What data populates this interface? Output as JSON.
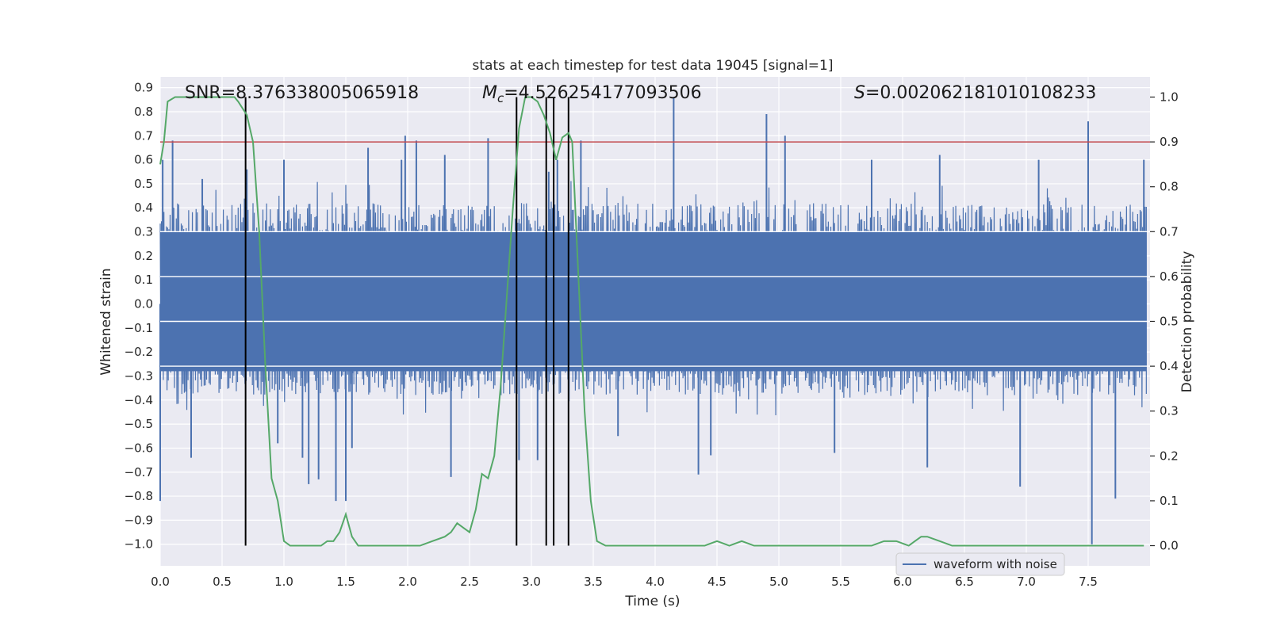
{
  "chart_data": {
    "type": "line",
    "title": "stats at each timestep for test data 19045 [signal=1]",
    "xlabel": "Time (s)",
    "ylabel": "Whitened strain",
    "y2label": "Detection probability",
    "xlim": [
      0.0,
      8.0
    ],
    "ylim": [
      -1.09,
      0.945
    ],
    "y2lim": [
      -0.045,
      1.045
    ],
    "xticks": [
      "0.0",
      "0.5",
      "1.0",
      "1.5",
      "2.0",
      "2.5",
      "3.0",
      "3.5",
      "4.0",
      "4.5",
      "5.0",
      "5.5",
      "6.0",
      "6.5",
      "7.0",
      "7.5"
    ],
    "yticks": [
      "0.9",
      "0.8",
      "0.7",
      "0.6",
      "0.5",
      "0.4",
      "0.3",
      "0.2",
      "0.1",
      "0.0",
      "-0.1",
      "-0.2",
      "-0.3",
      "-0.4",
      "-0.5",
      "-0.6",
      "-0.7",
      "-0.8",
      "-0.9",
      "-1.0"
    ],
    "y2ticks": [
      "1.0",
      "0.9",
      "0.8",
      "0.7",
      "0.6",
      "0.5",
      "0.4",
      "0.3",
      "0.2",
      "0.1",
      "0.0"
    ],
    "annotations": {
      "snr": "SNR=8.376338005065918",
      "mc_symbol": "M",
      "mc_sub": "c",
      "mc_value": "=4.526254177093506",
      "s_symbol": "S",
      "s_value": "=0.002062181010108233"
    },
    "legend": {
      "label": "waveform with noise",
      "location": "lower-right"
    },
    "threshold_probability": 0.9,
    "vertical_lines_s": [
      0.69,
      2.88,
      3.12,
      3.18,
      3.3
    ],
    "waveform": {
      "name": "waveform with noise",
      "color": "#4c72b0",
      "typical_envelope": [
        -0.38,
        0.42
      ],
      "positive_spikes": [
        {
          "t": 0.02,
          "v": 0.6
        },
        {
          "t": 0.1,
          "v": 0.68
        },
        {
          "t": 0.34,
          "v": 0.52
        },
        {
          "t": 0.7,
          "v": 0.56
        },
        {
          "t": 1.0,
          "v": 0.6
        },
        {
          "t": 1.68,
          "v": 0.65
        },
        {
          "t": 1.95,
          "v": 0.6
        },
        {
          "t": 1.98,
          "v": 0.7
        },
        {
          "t": 2.07,
          "v": 0.68
        },
        {
          "t": 2.3,
          "v": 0.62
        },
        {
          "t": 2.65,
          "v": 0.69
        },
        {
          "t": 3.14,
          "v": 0.55
        },
        {
          "t": 3.21,
          "v": 0.6
        },
        {
          "t": 3.4,
          "v": 0.68
        },
        {
          "t": 4.15,
          "v": 0.86
        },
        {
          "t": 4.9,
          "v": 0.79
        },
        {
          "t": 5.05,
          "v": 0.7
        },
        {
          "t": 5.75,
          "v": 0.6
        },
        {
          "t": 6.3,
          "v": 0.62
        },
        {
          "t": 7.1,
          "v": 0.6
        },
        {
          "t": 7.5,
          "v": 0.76
        },
        {
          "t": 7.95,
          "v": 0.6
        }
      ],
      "negative_spikes": [
        {
          "t": 0.0,
          "v": -0.82
        },
        {
          "t": 0.25,
          "v": -0.64
        },
        {
          "t": 0.95,
          "v": -0.58
        },
        {
          "t": 1.15,
          "v": -0.64
        },
        {
          "t": 1.2,
          "v": -0.75
        },
        {
          "t": 1.28,
          "v": -0.73
        },
        {
          "t": 1.42,
          "v": -0.82
        },
        {
          "t": 1.5,
          "v": -0.82
        },
        {
          "t": 1.55,
          "v": -0.6
        },
        {
          "t": 2.35,
          "v": -0.72
        },
        {
          "t": 2.9,
          "v": -0.65
        },
        {
          "t": 3.05,
          "v": -0.65
        },
        {
          "t": 3.7,
          "v": -0.55
        },
        {
          "t": 4.35,
          "v": -0.71
        },
        {
          "t": 4.45,
          "v": -0.63
        },
        {
          "t": 5.45,
          "v": -0.62
        },
        {
          "t": 6.2,
          "v": -0.68
        },
        {
          "t": 6.95,
          "v": -0.76
        },
        {
          "t": 7.53,
          "v": -1.0
        },
        {
          "t": 7.72,
          "v": -0.81
        }
      ]
    },
    "probability_series": {
      "name": "detection probability",
      "color": "#55a868",
      "x": [
        0.0,
        0.03,
        0.06,
        0.12,
        0.2,
        0.3,
        0.4,
        0.5,
        0.6,
        0.63,
        0.7,
        0.75,
        0.8,
        0.85,
        0.9,
        0.95,
        1.0,
        1.05,
        1.15,
        1.25,
        1.3,
        1.35,
        1.4,
        1.45,
        1.5,
        1.55,
        1.6,
        1.7,
        1.8,
        1.9,
        2.0,
        2.1,
        2.2,
        2.3,
        2.35,
        2.4,
        2.45,
        2.5,
        2.55,
        2.6,
        2.65,
        2.7,
        2.75,
        2.8,
        2.85,
        2.9,
        2.95,
        3.0,
        3.05,
        3.1,
        3.15,
        3.2,
        3.25,
        3.3,
        3.33,
        3.38,
        3.43,
        3.48,
        3.53,
        3.6,
        3.7,
        3.8,
        4.0,
        4.2,
        4.4,
        4.5,
        4.6,
        4.7,
        4.8,
        5.0,
        5.2,
        5.4,
        5.6,
        5.75,
        5.85,
        5.95,
        6.05,
        6.1,
        6.15,
        6.2,
        6.3,
        6.4,
        6.6,
        6.8,
        7.0,
        7.2,
        7.4,
        7.6,
        7.95
      ],
      "y": [
        0.85,
        0.9,
        0.99,
        1.0,
        1.0,
        1.0,
        1.0,
        1.0,
        1.0,
        0.99,
        0.96,
        0.9,
        0.7,
        0.4,
        0.15,
        0.1,
        0.01,
        0.0,
        0.0,
        0.0,
        0.0,
        0.01,
        0.01,
        0.03,
        0.07,
        0.02,
        0.0,
        0.0,
        0.0,
        0.0,
        0.0,
        0.0,
        0.01,
        0.02,
        0.03,
        0.05,
        0.04,
        0.03,
        0.08,
        0.16,
        0.15,
        0.2,
        0.35,
        0.55,
        0.75,
        0.93,
        1.0,
        1.0,
        0.99,
        0.96,
        0.92,
        0.86,
        0.91,
        0.92,
        0.9,
        0.6,
        0.3,
        0.1,
        0.01,
        0.0,
        0.0,
        0.0,
        0.0,
        0.0,
        0.0,
        0.01,
        0.0,
        0.01,
        0.0,
        0.0,
        0.0,
        0.0,
        0.0,
        0.0,
        0.01,
        0.01,
        0.0,
        0.01,
        0.02,
        0.02,
        0.01,
        0.0,
        0.0,
        0.0,
        0.0,
        0.0,
        0.0,
        0.0,
        0.0
      ]
    },
    "colors": {
      "plot_background": "#eaeaf2",
      "grid": "#ffffff",
      "threshold": "#c44e52",
      "vertical_lines": "#000000"
    }
  }
}
